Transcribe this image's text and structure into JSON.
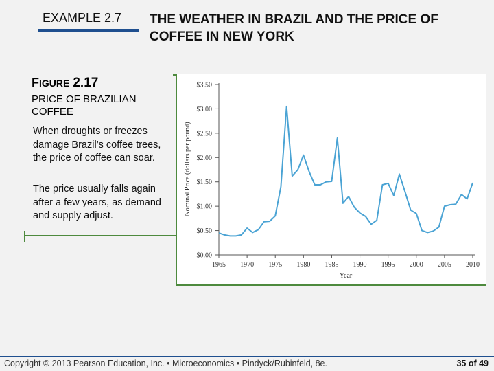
{
  "header": {
    "example_label": "EXAMPLE 2.7",
    "title_line1": "THE WEATHER IN BRAZIL AND THE PRICE OF",
    "title_line2": "COFFEE IN NEW YORK"
  },
  "figure": {
    "label_first": "F",
    "label_rest": "IGURE",
    "number": "2.17",
    "title_line1": "PRICE OF BRAZILIAN",
    "title_line2": "COFFEE",
    "para1": "When droughts or freezes damage Brazil’s coffee trees, the price of coffee can soar.",
    "para2": "The price usually falls again after a few years, as demand and supply adjust."
  },
  "footer": {
    "copyright": "Copyright © 2013 Pearson Education, Inc. • Microeconomics • Pindyck/Rubinfeld, 8e.",
    "page": "35 of 49"
  },
  "colors": {
    "line": "#4aa3d4",
    "accent_green": "#4e8a3e",
    "rule_blue": "#1f4f8f"
  },
  "chart_data": {
    "type": "line",
    "xlabel": "Year",
    "ylabel": "Nominal Price (dollars per pound)",
    "xlim": [
      1965,
      2010
    ],
    "ylim": [
      0,
      3.5
    ],
    "x_ticks": [
      1965,
      1970,
      1975,
      1980,
      1985,
      1990,
      1995,
      2000,
      2005,
      2010
    ],
    "y_ticks": [
      {
        "value": 0,
        "label": "$0.00"
      },
      {
        "value": 0.5,
        "label": "$0.50"
      },
      {
        "value": 1.0,
        "label": "$1.00"
      },
      {
        "value": 1.5,
        "label": "$1.50"
      },
      {
        "value": 2.0,
        "label": "$2.00"
      },
      {
        "value": 2.5,
        "label": "$2.50"
      },
      {
        "value": 3.0,
        "label": "$3.00"
      },
      {
        "value": 3.5,
        "label": "$3.50"
      }
    ],
    "series": [
      {
        "x": [
          1965,
          1966,
          1967,
          1968,
          1969,
          1970,
          1971,
          1972,
          1973,
          1974,
          1975,
          1976,
          1977,
          1978,
          1979,
          1980,
          1981,
          1982,
          1983,
          1984,
          1985,
          1986,
          1987,
          1988,
          1989,
          1990,
          1991,
          1992,
          1993,
          1994,
          1995,
          1996,
          1997,
          1998,
          1999,
          2000,
          2001,
          2002,
          2003,
          2004,
          2005,
          2006,
          2007,
          2008,
          2009,
          2010
        ],
        "y": [
          0.45,
          0.41,
          0.39,
          0.39,
          0.41,
          0.55,
          0.46,
          0.52,
          0.68,
          0.69,
          0.8,
          1.4,
          3.05,
          1.62,
          1.75,
          2.05,
          1.71,
          1.44,
          1.44,
          1.5,
          1.51,
          2.4,
          1.06,
          1.2,
          0.98,
          0.86,
          0.79,
          0.63,
          0.71,
          1.44,
          1.47,
          1.22,
          1.66,
          1.3,
          0.92,
          0.85,
          0.5,
          0.46,
          0.49,
          0.57,
          1.0,
          1.03,
          1.04,
          1.24,
          1.15,
          1.48
        ]
      }
    ]
  }
}
